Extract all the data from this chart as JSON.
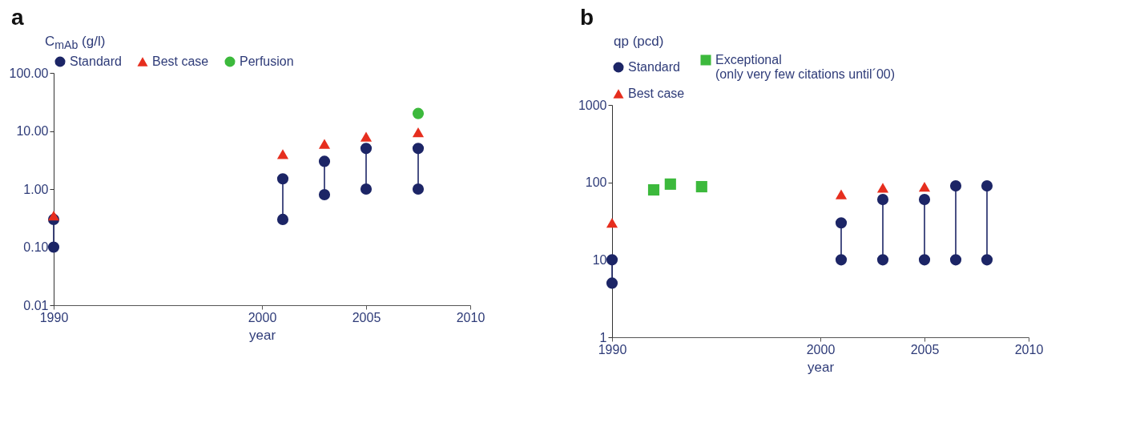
{
  "chart_data": [
    {
      "type": "scatter",
      "title": "a",
      "xlabel": "year",
      "ylabel": "C$_{mAb}$ (g/l)",
      "log": "y",
      "xlim": [
        1990,
        2010
      ],
      "xticks": [
        1990,
        2000,
        2005,
        2010
      ],
      "ylim": [
        0.01,
        100
      ],
      "yticks": [
        {
          "value": 0.01,
          "label": "0.01"
        },
        {
          "value": 0.1,
          "label": "0.10"
        },
        {
          "value": 1,
          "label": "1.00"
        },
        {
          "value": 10,
          "label": "10.00"
        },
        {
          "value": 100,
          "label": "100.00"
        }
      ],
      "grid": false,
      "legend": "top",
      "series": [
        {
          "type": "line",
          "color": "#1c2566",
          "line_style": "solid",
          "x": [
            1990,
            1990
          ],
          "values": [
            0.1,
            0.3
          ]
        },
        {
          "type": "line",
          "color": "#1c2566",
          "line_style": "solid",
          "x": [
            2001,
            2001
          ],
          "values": [
            0.3,
            1.5
          ]
        },
        {
          "type": "line",
          "color": "#1c2566",
          "line_style": "solid",
          "x": [
            2003,
            2003
          ],
          "values": [
            0.8,
            3
          ]
        },
        {
          "type": "line",
          "color": "#1c2566",
          "line_style": "solid",
          "x": [
            2005,
            2005
          ],
          "values": [
            1,
            5
          ]
        },
        {
          "type": "line",
          "color": "#1c2566",
          "line_style": "solid",
          "x": [
            2007.5,
            2007.5
          ],
          "values": [
            1,
            5
          ]
        },
        {
          "name": "Standard",
          "color": "#1c2566",
          "marker": "circle",
          "x": [
            1990,
            1990,
            2001,
            2001,
            2003,
            2003,
            2005,
            2005,
            2007.5,
            2007.5
          ],
          "values": [
            0.1,
            0.3,
            1.5,
            0.3,
            3,
            0.8,
            5,
            1,
            5,
            1
          ]
        },
        {
          "name": "Best case",
          "color": "#e62e1e",
          "marker": "triangle",
          "x": [
            1990,
            2001,
            2003,
            2005,
            2007.5
          ],
          "values": [
            0.35,
            4,
            6,
            8,
            9.5
          ]
        },
        {
          "name": "Perfusion",
          "color": "#3cb93c",
          "marker": "circle",
          "x": [
            2007.5
          ],
          "values": [
            20
          ]
        }
      ]
    },
    {
      "type": "scatter",
      "title": "b",
      "xlabel": "year",
      "ylabel": "qp (pcd)",
      "log": "y",
      "xlim": [
        1990,
        2010
      ],
      "xticks": [
        1990,
        2000,
        2005,
        2010
      ],
      "ylim": [
        1,
        1000
      ],
      "yticks": [
        1,
        10,
        100,
        1000
      ],
      "grid": false,
      "legend": "top",
      "series": [
        {
          "type": "line",
          "color": "#1c2566",
          "line_style": "solid",
          "x": [
            1990,
            1990
          ],
          "values": [
            5,
            10
          ]
        },
        {
          "type": "line",
          "color": "#1c2566",
          "line_style": "solid",
          "x": [
            2001,
            2001
          ],
          "values": [
            10,
            30
          ]
        },
        {
          "type": "line",
          "color": "#1c2566",
          "line_style": "solid",
          "x": [
            2003,
            2003
          ],
          "values": [
            10,
            60
          ]
        },
        {
          "type": "line",
          "color": "#1c2566",
          "line_style": "solid",
          "x": [
            2005,
            2005
          ],
          "values": [
            10,
            60
          ]
        },
        {
          "type": "line",
          "color": "#1c2566",
          "line_style": "solid",
          "x": [
            2006.5,
            2006.5
          ],
          "values": [
            10,
            90
          ]
        },
        {
          "type": "line",
          "color": "#1c2566",
          "line_style": "solid",
          "x": [
            2008,
            2008
          ],
          "values": [
            10,
            90
          ]
        },
        {
          "name": "Standard",
          "color": "#1c2566",
          "marker": "circle",
          "x": [
            1990,
            1990,
            2001,
            2001,
            2003,
            2003,
            2005,
            2005,
            2006.5,
            2006.5,
            2008,
            2008
          ],
          "values": [
            10,
            5,
            30,
            10,
            60,
            10,
            60,
            10,
            90,
            10,
            90,
            10
          ]
        },
        {
          "name": "Exceptional\n(only very few citations until´00)",
          "color": "#3cb93c",
          "marker": "square",
          "x": [
            1992,
            1992.8,
            1994.3
          ],
          "values": [
            80,
            95,
            88
          ]
        },
        {
          "name": "Best case",
          "color": "#e62e1e",
          "marker": "triangle",
          "x": [
            1990,
            2001,
            2003,
            2005
          ],
          "values": [
            30,
            70,
            85,
            88
          ]
        }
      ]
    }
  ]
}
